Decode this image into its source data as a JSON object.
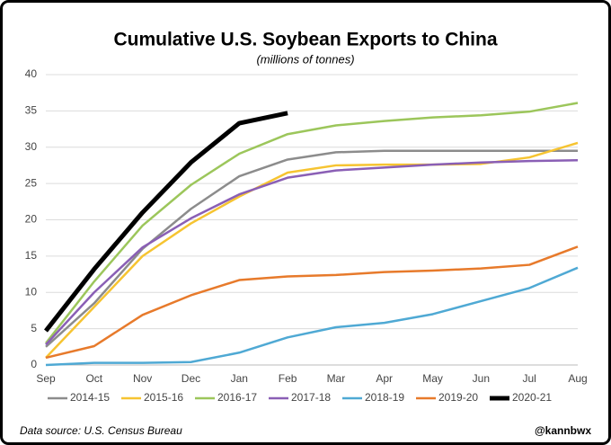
{
  "chart_data": {
    "type": "line",
    "title": "Cumulative U.S. Soybean Exports to China",
    "subtitle": "(millions of tonnes)",
    "source": "Data source: U.S. Census Bureau",
    "credit": "@kannbwx",
    "categories": [
      "Sep",
      "Oct",
      "Nov",
      "Dec",
      "Jan",
      "Feb",
      "Mar",
      "Apr",
      "May",
      "Jun",
      "Jul",
      "Aug"
    ],
    "ylim": [
      0,
      40
    ],
    "yticks": [
      0,
      5,
      10,
      15,
      20,
      25,
      30,
      35,
      40
    ],
    "grid": true,
    "legend": "bottom",
    "series": [
      {
        "name": "2014-15",
        "color": "#8c8c8c",
        "width": 2.5,
        "values": [
          2.5,
          8.5,
          16,
          21.5,
          26,
          28.3,
          29.3,
          29.5,
          29.5,
          29.5,
          29.5,
          29.5
        ]
      },
      {
        "name": "2015-16",
        "color": "#f6c431",
        "width": 2.5,
        "values": [
          1,
          8,
          15,
          19.5,
          23.2,
          26.5,
          27.5,
          27.6,
          27.6,
          27.7,
          28.6,
          30.6
        ]
      },
      {
        "name": "2016-17",
        "color": "#9cc65b",
        "width": 2.5,
        "values": [
          3,
          11.5,
          19.2,
          24.8,
          29.1,
          31.8,
          33,
          33.6,
          34.1,
          34.4,
          34.9,
          36.1
        ]
      },
      {
        "name": "2017-18",
        "color": "#8a5fb5",
        "width": 2.5,
        "values": [
          2.8,
          10,
          16.2,
          20.2,
          23.5,
          25.8,
          26.8,
          27.2,
          27.6,
          27.9,
          28.1,
          28.2
        ]
      },
      {
        "name": "2018-19",
        "color": "#4fa9d4",
        "width": 2.5,
        "values": [
          0,
          0.3,
          0.3,
          0.4,
          1.7,
          3.8,
          5.2,
          5.8,
          7,
          8.8,
          10.6,
          13.4
        ]
      },
      {
        "name": "2019-20",
        "color": "#e77a2b",
        "width": 2.5,
        "values": [
          1,
          2.6,
          6.9,
          9.6,
          11.7,
          12.2,
          12.4,
          12.8,
          13,
          13.3,
          13.8,
          16.3
        ]
      },
      {
        "name": "2020-21",
        "color": "#000000",
        "width": 5,
        "values": [
          4.7,
          13.2,
          21,
          27.9,
          33.3,
          34.7,
          null,
          null,
          null,
          null,
          null,
          null
        ]
      }
    ]
  }
}
